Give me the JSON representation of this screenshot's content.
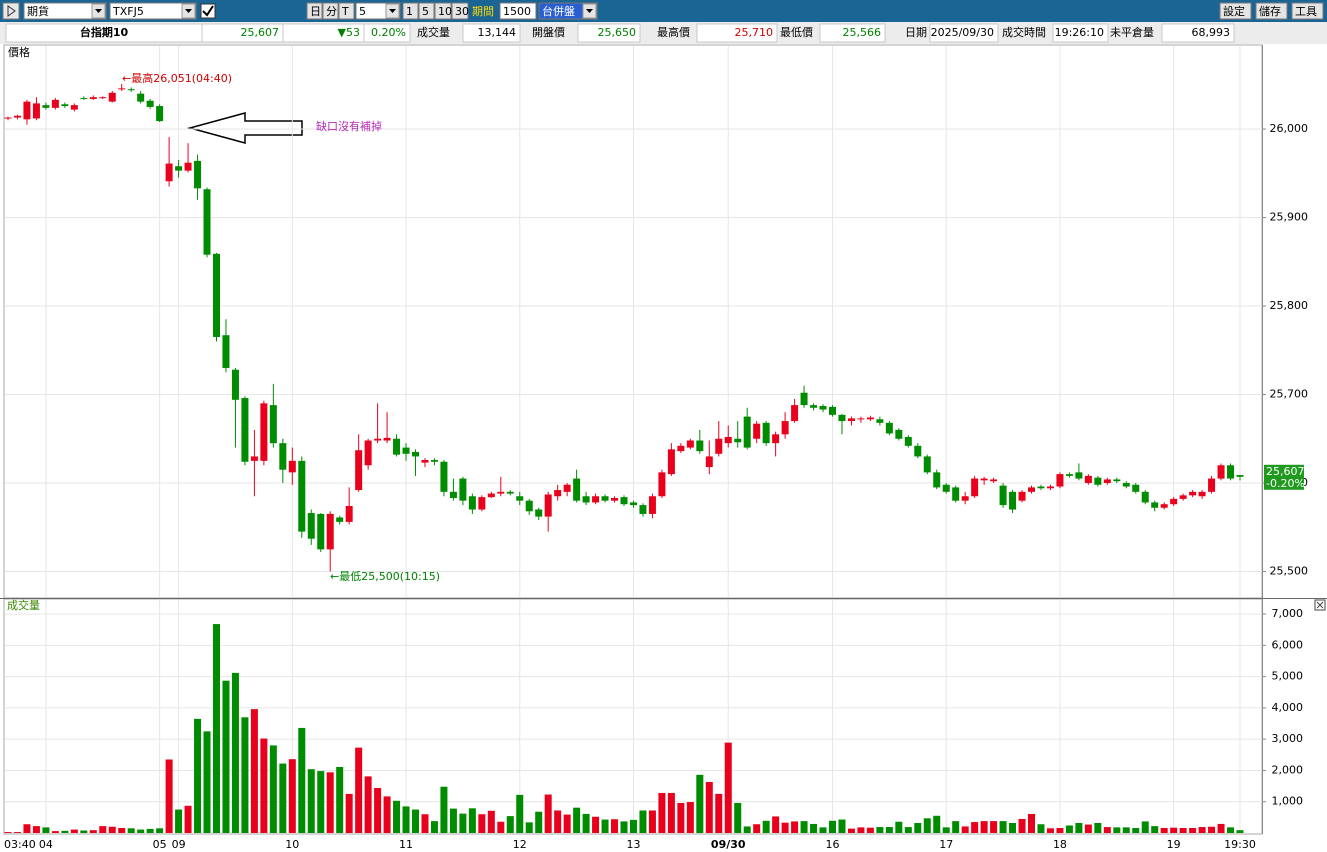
{
  "toolbar": {
    "market": "期貨",
    "symbol": "TXFJ5",
    "buttons": [
      "日",
      "分",
      "T"
    ],
    "interval": "5",
    "minutes": [
      "1",
      "5",
      "10",
      "30"
    ],
    "period_label": "期間",
    "period": "1500",
    "session": "台併盤",
    "actions": [
      "設定",
      "儲存",
      "工具"
    ]
  },
  "quote": {
    "cells": [
      {
        "text": "台指期10",
        "color": "#000000"
      },
      {
        "text": "25,607",
        "color": "#008000"
      },
      {
        "text": "▼53",
        "color": "#008000"
      },
      {
        "text": "0.20%",
        "color": "#008000"
      },
      {
        "text": "成交量",
        "color": "#000000"
      },
      {
        "text": "13,144",
        "color": "#000000"
      },
      {
        "text": "開盤價",
        "color": "#000000"
      },
      {
        "text": "25,650",
        "color": "#008000"
      },
      {
        "text": "最高價",
        "color": "#000000"
      },
      {
        "text": "25,710",
        "color": "#d00000"
      },
      {
        "text": "最低價",
        "color": "#000000"
      },
      {
        "text": "25,566",
        "color": "#008000"
      },
      {
        "text": "日期",
        "color": "#000000"
      },
      {
        "text": "2025/09/30",
        "color": "#000000"
      },
      {
        "text": "成交時間",
        "color": "#000000"
      },
      {
        "text": "19:26:10",
        "color": "#000000"
      },
      {
        "text": "未平倉量",
        "color": "#000000"
      },
      {
        "text": "68,993",
        "color": "#000000"
      }
    ]
  },
  "chart_data": [
    {
      "type": "candlestick",
      "title": "價格",
      "up_color": "#e8001c",
      "down_color": "#008c00",
      "open": [
        26012,
        26013,
        26011,
        26012,
        26027,
        26024,
        26028,
        26022,
        26035,
        26034,
        26035,
        26031,
        26045,
        26045,
        26040,
        26032,
        26026,
        25941,
        25958,
        25953,
        25964,
        25932,
        25859,
        25767,
        25728,
        25696,
        25625,
        25625,
        25688,
        25645,
        25612,
        25625,
        25566,
        25565,
        25525,
        25561,
        25556,
        25592,
        25620,
        25648,
        25648,
        25650,
        25640,
        25635,
        25623,
        25626,
        25624,
        25590,
        25605,
        25585,
        25570,
        25584,
        25588,
        25590,
        25585,
        25580,
        25570,
        25562,
        25585,
        25590,
        25605,
        25585,
        25578,
        25585,
        25580,
        25584,
        25578,
        25575,
        25565,
        25585,
        25610,
        25636,
        25640,
        25648,
        25618,
        25633,
        25645,
        25650,
        25675,
        25650,
        25668,
        25645,
        25655,
        25670,
        25702,
        25688,
        25687,
        25686,
        25677,
        25670,
        25672,
        25672,
        25672,
        25668,
        25660,
        25652,
        25642,
        25630,
        25612,
        25598,
        25595,
        25580,
        25585,
        25603,
        25602,
        25597,
        25590,
        25580,
        25590,
        25596,
        25594,
        25596,
        25610,
        25612,
        25600,
        25606,
        25600,
        25604,
        25600,
        25598,
        25590,
        25578,
        25572,
        25576,
        25582,
        25586,
        25585,
        25590,
        25605,
        25620,
        25609
      ],
      "high": [
        26014,
        26016,
        26033,
        26036,
        26030,
        26035,
        26030,
        26029,
        26037,
        26038,
        26037,
        26043,
        26051,
        26047,
        26043,
        26034,
        26028,
        25991,
        25965,
        25984,
        25971,
        25934,
        25860,
        25785,
        25730,
        25698,
        25660,
        25693,
        25712,
        25650,
        25640,
        25630,
        25570,
        25566,
        25568,
        25563,
        25595,
        25655,
        25650,
        25690,
        25680,
        25655,
        25645,
        25638,
        25628,
        25628,
        25626,
        25605,
        25607,
        25588,
        25586,
        25590,
        25607,
        25592,
        25590,
        25582,
        25572,
        25590,
        25598,
        25600,
        25615,
        25590,
        25588,
        25587,
        25585,
        25586,
        25580,
        25577,
        25588,
        25615,
        25645,
        25645,
        25650,
        25660,
        25648,
        25670,
        25665,
        25670,
        25685,
        25670,
        25670,
        25658,
        25680,
        25695,
        25710,
        25690,
        25689,
        25688,
        25678,
        25675,
        25675,
        25676,
        25675,
        25670,
        25662,
        25654,
        25645,
        25632,
        25615,
        25600,
        25597,
        25590,
        25608,
        25607,
        25606,
        25600,
        25592,
        25592,
        25597,
        25598,
        25598,
        25612,
        25612,
        25622,
        25610,
        25608,
        25606,
        25606,
        25602,
        25600,
        25592,
        25580,
        25578,
        25584,
        25588,
        25592,
        25592,
        25608,
        25622,
        25622,
        25609
      ],
      "low": [
        26010,
        26011,
        26005,
        26010,
        26022,
        26022,
        26024,
        26020,
        26033,
        26033,
        26034,
        26030,
        26043,
        26042,
        26029,
        26023,
        26008,
        25935,
        25945,
        25951,
        25920,
        25855,
        25760,
        25725,
        25640,
        25620,
        25585,
        25620,
        25640,
        25600,
        25598,
        25538,
        25530,
        25522,
        25500,
        25553,
        25553,
        25590,
        25615,
        25645,
        25645,
        25630,
        25625,
        25608,
        25618,
        25620,
        25585,
        25580,
        25575,
        25565,
        25568,
        25583,
        25585,
        25586,
        25575,
        25564,
        25558,
        25545,
        25580,
        25585,
        25578,
        25575,
        25576,
        25578,
        25578,
        25574,
        25572,
        25562,
        25560,
        25583,
        25608,
        25634,
        25638,
        25633,
        25610,
        25630,
        25640,
        25640,
        25638,
        25645,
        25642,
        25630,
        25650,
        25668,
        25685,
        25682,
        25680,
        25675,
        25655,
        25665,
        25668,
        25670,
        25665,
        25654,
        25648,
        25640,
        25628,
        25610,
        25593,
        25588,
        25578,
        25576,
        25583,
        25598,
        25600,
        25572,
        25566,
        25578,
        25588,
        25592,
        25592,
        25594,
        25606,
        25603,
        25598,
        25596,
        25598,
        25600,
        25594,
        25588,
        25576,
        25568,
        25570,
        25574,
        25580,
        25584,
        25582,
        25588,
        25603,
        25603,
        25603
      ],
      "close": [
        26013,
        26015,
        26031,
        26029,
        26024,
        26033,
        26026,
        26027,
        26034,
        26036,
        26036,
        26041,
        26046,
        26044,
        26031,
        26025,
        26009,
        25961,
        25953,
        25962,
        25933,
        25858,
        25765,
        25730,
        25694,
        25624,
        25630,
        25690,
        25645,
        25615,
        25625,
        25545,
        25537,
        25525,
        25565,
        25556,
        25574,
        25637,
        25648,
        25650,
        25651,
        25632,
        25633,
        25630,
        25626,
        25624,
        25590,
        25583,
        25580,
        25570,
        25584,
        25588,
        25590,
        25588,
        25580,
        25568,
        25562,
        25587,
        25592,
        25598,
        25580,
        25578,
        25585,
        25580,
        25583,
        25576,
        25575,
        25565,
        25585,
        25612,
        25638,
        25642,
        25648,
        25636,
        25630,
        25650,
        25652,
        25646,
        25640,
        25667,
        25645,
        25655,
        25670,
        25688,
        25688,
        25685,
        25683,
        25677,
        25670,
        25673,
        25673,
        25674,
        25668,
        25656,
        25650,
        25642,
        25630,
        25612,
        25595,
        25590,
        25580,
        25585,
        25605,
        25605,
        25604,
        25575,
        25570,
        25590,
        25595,
        25594,
        25596,
        25610,
        25608,
        25605,
        25608,
        25598,
        25604,
        25602,
        25596,
        25590,
        25578,
        25572,
        25576,
        25582,
        25586,
        25590,
        25590,
        25605,
        25620,
        25605,
        25607
      ],
      "ylim": [
        25470,
        26095
      ],
      "yticks": [
        {
          "value": 25500,
          "label": "25,500"
        },
        {
          "value": 25600,
          "label": "25,600"
        },
        {
          "value": 25700,
          "label": "25,700"
        },
        {
          "value": 25800,
          "label": "25,800"
        },
        {
          "value": 25900,
          "label": "25,900"
        },
        {
          "value": 26000,
          "label": "26,000"
        }
      ],
      "last_price": {
        "value": 25607,
        "label": "25,607",
        "change": "-0.20%"
      },
      "annotations": [
        {
          "text": "←最高26,051(04:40)",
          "color": "#d00000"
        },
        {
          "text": "←最低25,500(10:15)",
          "color": "#008000"
        },
        {
          "text": "缺口沒有補掉",
          "color": "#b22cb5"
        }
      ],
      "grid": true
    },
    {
      "type": "bar",
      "title": "成交量",
      "categories": [
        "03:40",
        null,
        null,
        null,
        "04",
        null,
        null,
        null,
        null,
        null,
        null,
        null,
        null,
        null,
        null,
        null,
        "05",
        null,
        "09",
        null,
        null,
        null,
        null,
        null,
        null,
        null,
        null,
        null,
        null,
        null,
        "10",
        null,
        null,
        null,
        null,
        null,
        null,
        null,
        null,
        null,
        null,
        null,
        "11",
        null,
        null,
        null,
        null,
        null,
        null,
        null,
        null,
        null,
        null,
        null,
        "12",
        null,
        null,
        null,
        null,
        null,
        null,
        null,
        null,
        null,
        null,
        null,
        "13",
        null,
        null,
        null,
        null,
        null,
        null,
        null,
        null,
        null,
        "09/30",
        null,
        null,
        null,
        null,
        null,
        null,
        null,
        null,
        null,
        null,
        "16",
        null,
        null,
        null,
        null,
        null,
        null,
        null,
        null,
        null,
        null,
        null,
        "17",
        null,
        null,
        null,
        null,
        null,
        null,
        null,
        null,
        null,
        null,
        null,
        "18",
        null,
        null,
        null,
        null,
        null,
        null,
        null,
        null,
        null,
        null,
        null,
        "19",
        null,
        null,
        null,
        null,
        null,
        null,
        "19:30"
      ],
      "values": [
        30,
        30,
        280,
        220,
        180,
        60,
        70,
        110,
        80,
        90,
        220,
        200,
        160,
        150,
        110,
        130,
        150,
        2350,
        750,
        870,
        3650,
        3250,
        6680,
        4870,
        5120,
        3700,
        3960,
        3020,
        2800,
        2220,
        2360,
        3360,
        2040,
        1980,
        1940,
        2110,
        1250,
        2730,
        1810,
        1440,
        1170,
        1030,
        850,
        750,
        600,
        380,
        1480,
        780,
        620,
        790,
        600,
        710,
        360,
        540,
        1220,
        340,
        680,
        1230,
        720,
        590,
        810,
        610,
        520,
        430,
        440,
        370,
        420,
        720,
        720,
        1280,
        1280,
        960,
        990,
        1860,
        1630,
        1250,
        2890,
        960,
        210,
        280,
        390,
        530,
        330,
        370,
        380,
        290,
        180,
        390,
        430,
        140,
        180,
        170,
        190,
        190,
        360,
        190,
        320,
        470,
        550,
        180,
        380,
        210,
        350,
        380,
        380,
        380,
        320,
        450,
        610,
        280,
        150,
        160,
        240,
        320,
        270,
        320,
        190,
        180,
        180,
        160,
        370,
        220,
        160,
        170,
        160,
        160,
        190,
        200,
        290,
        180,
        90
      ],
      "ylim": [
        0,
        7450
      ],
      "yticks": [
        {
          "value": 1000,
          "label": "1,000"
        },
        {
          "value": 2000,
          "label": "2,000"
        },
        {
          "value": 3000,
          "label": "3,000"
        },
        {
          "value": 4000,
          "label": "4,000"
        },
        {
          "value": 5000,
          "label": "5,000"
        },
        {
          "value": 6000,
          "label": "6,000"
        },
        {
          "value": 7000,
          "label": "7,000"
        }
      ],
      "grid": true
    }
  ]
}
